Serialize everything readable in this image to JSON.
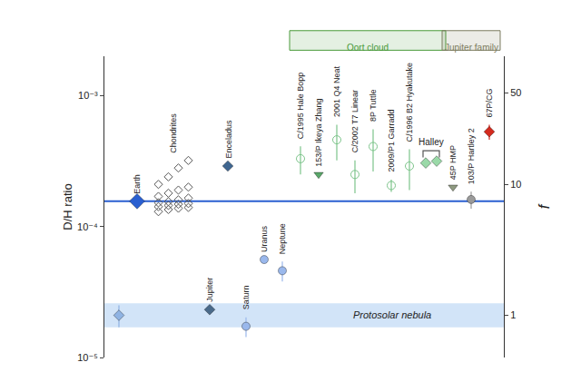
{
  "chart_data": {
    "type": "scatter",
    "log": "y",
    "grid": false,
    "tick_labels": "y",
    "y_title": "D/H ratio",
    "y2_title": "f",
    "ylim": [
      1e-05,
      0.002
    ],
    "yticks": [
      {
        "value": 1e-05,
        "label": "10⁻⁵"
      },
      {
        "value": 0.0001,
        "label": "10⁻⁴"
      },
      {
        "value": 0.001,
        "label": "10⁻³"
      }
    ],
    "y2lim": [
      0.476,
      95.24
    ],
    "y2ticks": [
      1,
      10,
      50
    ],
    "groups": [
      {
        "label": "Oort cloud",
        "color": "#4a9a3a",
        "members": [
          "C/1995 Hale Bopp",
          "153/P Ikeya Zhang",
          "2001 Q4 Neat",
          "C/2002 T7 Linear",
          "8P Tuttle",
          "2009/P1 Garradd",
          "C/1996 B2 Hyakutake",
          "Halley"
        ]
      },
      {
        "label": "Jupiter family",
        "color": "#7d7d60",
        "members": [
          "45P HMP",
          "103/P Hartley 2",
          "67P/CG"
        ]
      }
    ],
    "series": [
      {
        "name": "Protosolar nebula",
        "color": "#8fb3e3",
        "marker": "diamond",
        "values": [
          2.1e-05
        ],
        "errors": [
          4e-06
        ],
        "band": [
          1.7e-05,
          2.6e-05
        ]
      },
      {
        "name": "Earth",
        "color": "#2a5fd0",
        "marker": "diamond",
        "line_style": "solid",
        "values": [
          0.000156
        ]
      },
      {
        "name": "Chondrites",
        "color": "#555555",
        "marker": "diamond-open",
        "values": [
          0.00013,
          0.000135,
          0.000138,
          0.00014,
          0.000142,
          0.000145,
          0.000148,
          0.00015,
          0.000152,
          0.000155,
          0.00016,
          0.000165,
          0.00017,
          0.00018,
          0.00019,
          0.0002,
          0.00021,
          0.00024,
          0.00028,
          0.00032
        ]
      },
      {
        "name": "Jupiter",
        "color": "#4a6a8a",
        "marker": "diamond",
        "values": [
          2.32e-05
        ]
      },
      {
        "name": "Enceladus",
        "color": "#3f6690",
        "marker": "diamond",
        "values": [
          0.00029
        ]
      },
      {
        "name": "Saturn",
        "color": "#9ab8ec",
        "marker": "circle",
        "values": [
          1.73e-05
        ],
        "errors": [
          3e-06
        ]
      },
      {
        "name": "Uranus",
        "color": "#9ab8ec",
        "marker": "circle",
        "values": [
          5.6e-05
        ]
      },
      {
        "name": "Neptune",
        "color": "#9ab8ec",
        "marker": "circle",
        "values": [
          4.6e-05
        ],
        "errors": [
          8e-06
        ]
      },
      {
        "name": "C/1995 Hale Bopp",
        "color": "#7cc48a",
        "marker": "circle-open",
        "values": [
          0.00033
        ],
        "errors": [
          8e-05
        ]
      },
      {
        "name": "153/P Ikeya Zhang",
        "color": "#5aa86a",
        "marker": "triangle-down",
        "values": [
          0.00025
        ]
      },
      {
        "name": "2001 Q4 Neat",
        "color": "#7cc48a",
        "marker": "circle-open",
        "values": [
          0.00046
        ],
        "errors": [
          0.00014
        ]
      },
      {
        "name": "C/2002 T7 Linear",
        "color": "#7cc48a",
        "marker": "circle-open",
        "values": [
          0.00025
        ],
        "errors": [
          7e-05
        ]
      },
      {
        "name": "8P Tuttle",
        "color": "#7cc48a",
        "marker": "circle-open",
        "values": [
          0.000409
        ],
        "errors": [
          0.000145
        ]
      },
      {
        "name": "2009/P1 Garradd",
        "color": "#7cc48a",
        "marker": "circle-open",
        "values": [
          0.000206
        ],
        "errors": [
          2.2e-05
        ]
      },
      {
        "name": "C/1996 B2 Hyakutake",
        "color": "#7cc48a",
        "marker": "circle-open",
        "values": [
          0.00029
        ],
        "errors": [
          0.0001
        ]
      },
      {
        "name": "Halley",
        "color": "#9ad9a8",
        "marker": "diamond",
        "values": [
          0.000306,
          0.000316
        ]
      },
      {
        "name": "45P HMP",
        "color": "#8f9a80",
        "marker": "triangle-down",
        "values": [
          0.0002
        ]
      },
      {
        "name": "103/P Hartley 2",
        "color": "#9a9a9a",
        "marker": "circle",
        "values": [
          0.000161
        ],
        "errors": [
          2.4e-05
        ]
      },
      {
        "name": "67P/CG",
        "color": "#d42a1e",
        "marker": "diamond",
        "values": [
          0.00053
        ],
        "errors": [
          7e-05
        ]
      }
    ]
  }
}
